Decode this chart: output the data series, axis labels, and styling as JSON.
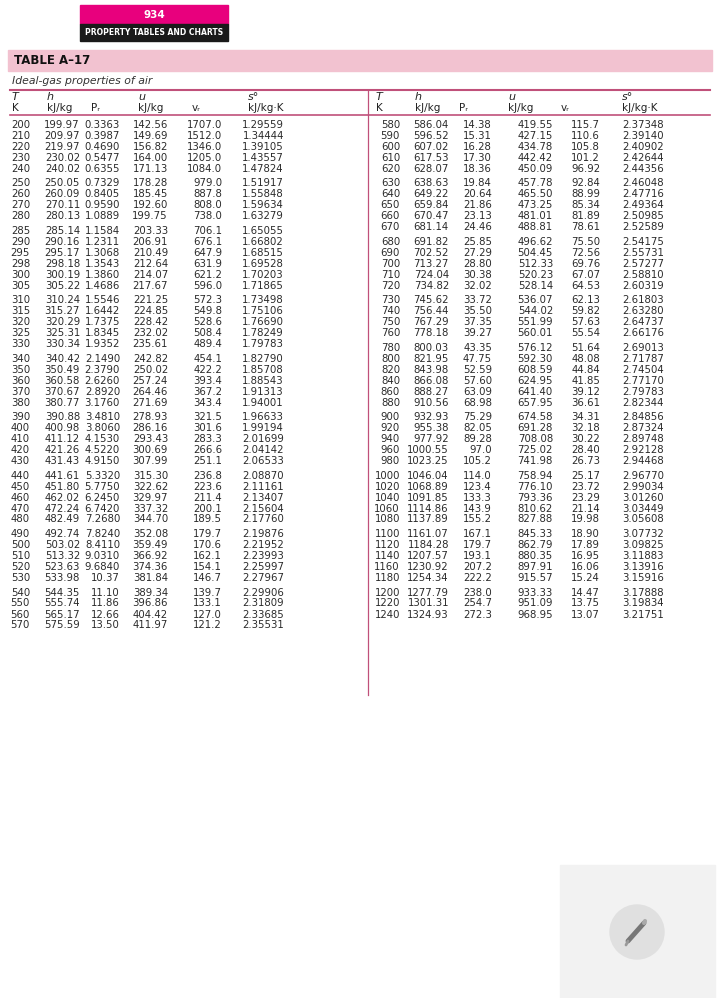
{
  "page_number": "934",
  "page_header": "PROPERTY TABLES AND CHARTS",
  "table_title": "TABLE A–17",
  "table_subtitle": "Ideal-gas properties of air",
  "left_data": [
    [
      200,
      199.97,
      0.3363,
      142.56,
      1707.0,
      1.29559
    ],
    [
      210,
      209.97,
      0.3987,
      149.69,
      1512.0,
      1.34444
    ],
    [
      220,
      219.97,
      0.469,
      156.82,
      1346.0,
      1.39105
    ],
    [
      230,
      230.02,
      0.5477,
      164.0,
      1205.0,
      1.43557
    ],
    [
      240,
      240.02,
      0.6355,
      171.13,
      1084.0,
      1.47824
    ],
    [
      250,
      250.05,
      0.7329,
      178.28,
      979.0,
      1.51917
    ],
    [
      260,
      260.09,
      0.8405,
      185.45,
      887.8,
      1.55848
    ],
    [
      270,
      270.11,
      0.959,
      192.6,
      808.0,
      1.59634
    ],
    [
      280,
      280.13,
      1.0889,
      199.75,
      738.0,
      1.63279
    ],
    [
      285,
      285.14,
      1.1584,
      203.33,
      706.1,
      1.65055
    ],
    [
      290,
      290.16,
      1.2311,
      206.91,
      676.1,
      1.66802
    ],
    [
      295,
      295.17,
      1.3068,
      210.49,
      647.9,
      1.68515
    ],
    [
      298,
      298.18,
      1.3543,
      212.64,
      631.9,
      1.69528
    ],
    [
      300,
      300.19,
      1.386,
      214.07,
      621.2,
      1.70203
    ],
    [
      305,
      305.22,
      1.4686,
      217.67,
      596.0,
      1.71865
    ],
    [
      310,
      310.24,
      1.5546,
      221.25,
      572.3,
      1.73498
    ],
    [
      315,
      315.27,
      1.6442,
      224.85,
      549.8,
      1.75106
    ],
    [
      320,
      320.29,
      1.7375,
      228.42,
      528.6,
      1.7669
    ],
    [
      325,
      325.31,
      1.8345,
      232.02,
      508.4,
      1.78249
    ],
    [
      330,
      330.34,
      1.9352,
      235.61,
      489.4,
      1.79783
    ],
    [
      340,
      340.42,
      2.149,
      242.82,
      454.1,
      1.8279
    ],
    [
      350,
      350.49,
      2.379,
      250.02,
      422.2,
      1.85708
    ],
    [
      360,
      360.58,
      2.626,
      257.24,
      393.4,
      1.88543
    ],
    [
      370,
      370.67,
      2.892,
      264.46,
      367.2,
      1.91313
    ],
    [
      380,
      380.77,
      3.176,
      271.69,
      343.4,
      1.94001
    ],
    [
      390,
      390.88,
      3.481,
      278.93,
      321.5,
      1.96633
    ],
    [
      400,
      400.98,
      3.806,
      286.16,
      301.6,
      1.99194
    ],
    [
      410,
      411.12,
      4.153,
      293.43,
      283.3,
      2.01699
    ],
    [
      420,
      421.26,
      4.522,
      300.69,
      266.6,
      2.04142
    ],
    [
      430,
      431.43,
      4.915,
      307.99,
      251.1,
      2.06533
    ],
    [
      440,
      441.61,
      5.332,
      315.3,
      236.8,
      2.0887
    ],
    [
      450,
      451.8,
      5.775,
      322.62,
      223.6,
      2.11161
    ],
    [
      460,
      462.02,
      6.245,
      329.97,
      211.4,
      2.13407
    ],
    [
      470,
      472.24,
      6.742,
      337.32,
      200.1,
      2.15604
    ],
    [
      480,
      482.49,
      7.268,
      344.7,
      189.5,
      2.1776
    ],
    [
      490,
      492.74,
      7.824,
      352.08,
      179.7,
      2.19876
    ],
    [
      500,
      503.02,
      8.411,
      359.49,
      170.6,
      2.21952
    ],
    [
      510,
      513.32,
      9.031,
      366.92,
      162.1,
      2.23993
    ],
    [
      520,
      523.63,
      9.684,
      374.36,
      154.1,
      2.25997
    ],
    [
      530,
      533.98,
      10.37,
      381.84,
      146.7,
      2.27967
    ],
    [
      540,
      544.35,
      11.1,
      389.34,
      139.7,
      2.29906
    ],
    [
      550,
      555.74,
      11.86,
      396.86,
      133.1,
      2.31809
    ],
    [
      560,
      565.17,
      12.66,
      404.42,
      127.0,
      2.33685
    ],
    [
      570,
      575.59,
      13.5,
      411.97,
      121.2,
      2.35531
    ]
  ],
  "right_data": [
    [
      580,
      586.04,
      14.38,
      419.55,
      115.7,
      2.37348
    ],
    [
      590,
      596.52,
      15.31,
      427.15,
      110.6,
      2.3914
    ],
    [
      600,
      607.02,
      16.28,
      434.78,
      105.8,
      2.40902
    ],
    [
      610,
      617.53,
      17.3,
      442.42,
      101.2,
      2.42644
    ],
    [
      620,
      628.07,
      18.36,
      450.09,
      96.92,
      2.44356
    ],
    [
      630,
      638.63,
      19.84,
      457.78,
      92.84,
      2.46048
    ],
    [
      640,
      649.22,
      20.64,
      465.5,
      88.99,
      2.47716
    ],
    [
      650,
      659.84,
      21.86,
      473.25,
      85.34,
      2.49364
    ],
    [
      660,
      670.47,
      23.13,
      481.01,
      81.89,
      2.50985
    ],
    [
      670,
      681.14,
      24.46,
      488.81,
      78.61,
      2.52589
    ],
    [
      680,
      691.82,
      25.85,
      496.62,
      75.5,
      2.54175
    ],
    [
      690,
      702.52,
      27.29,
      504.45,
      72.56,
      2.55731
    ],
    [
      700,
      713.27,
      28.8,
      512.33,
      69.76,
      2.57277
    ],
    [
      710,
      724.04,
      30.38,
      520.23,
      67.07,
      2.5881
    ],
    [
      720,
      734.82,
      32.02,
      528.14,
      64.53,
      2.60319
    ],
    [
      730,
      745.62,
      33.72,
      536.07,
      62.13,
      2.61803
    ],
    [
      740,
      756.44,
      35.5,
      544.02,
      59.82,
      2.6328
    ],
    [
      750,
      767.29,
      37.35,
      551.99,
      57.63,
      2.64737
    ],
    [
      760,
      778.18,
      39.27,
      560.01,
      55.54,
      2.66176
    ],
    [
      780,
      800.03,
      43.35,
      576.12,
      51.64,
      2.69013
    ],
    [
      800,
      821.95,
      47.75,
      592.3,
      48.08,
      2.71787
    ],
    [
      820,
      843.98,
      52.59,
      608.59,
      44.84,
      2.74504
    ],
    [
      840,
      866.08,
      57.6,
      624.95,
      41.85,
      2.7717
    ],
    [
      860,
      888.27,
      63.09,
      641.4,
      39.12,
      2.79783
    ],
    [
      880,
      910.56,
      68.98,
      657.95,
      36.61,
      2.82344
    ],
    [
      900,
      932.93,
      75.29,
      674.58,
      34.31,
      2.84856
    ],
    [
      920,
      955.38,
      82.05,
      691.28,
      32.18,
      2.87324
    ],
    [
      940,
      977.92,
      89.28,
      708.08,
      30.22,
      2.89748
    ],
    [
      960,
      1000.55,
      97.0,
      725.02,
      28.4,
      2.92128
    ],
    [
      980,
      1023.25,
      105.2,
      741.98,
      26.73,
      2.94468
    ],
    [
      1000,
      1046.04,
      114.0,
      758.94,
      25.17,
      2.9677
    ],
    [
      1020,
      1068.89,
      123.4,
      776.1,
      23.72,
      2.99034
    ],
    [
      1040,
      1091.85,
      133.3,
      793.36,
      23.29,
      3.0126
    ],
    [
      1060,
      1114.86,
      143.9,
      810.62,
      21.14,
      3.03449
    ],
    [
      1080,
      1137.89,
      155.2,
      827.88,
      19.98,
      3.05608
    ],
    [
      1100,
      1161.07,
      167.1,
      845.33,
      18.896,
      3.07732
    ],
    [
      1120,
      1184.28,
      179.7,
      862.79,
      17.886,
      3.09825
    ],
    [
      1140,
      1207.57,
      193.1,
      880.35,
      16.946,
      3.11883
    ],
    [
      1160,
      1230.92,
      207.2,
      897.91,
      16.064,
      3.13916
    ],
    [
      1180,
      1254.34,
      222.2,
      915.57,
      15.241,
      3.15916
    ],
    [
      1200,
      1277.79,
      238.0,
      933.33,
      14.47,
      3.17888
    ],
    [
      1220,
      1301.31,
      254.7,
      951.09,
      13.747,
      3.19834
    ],
    [
      1240,
      1324.93,
      272.3,
      968.95,
      13.069,
      3.21751
    ]
  ],
  "group_breaks_left": [
    4,
    8,
    14,
    19,
    24,
    29,
    34,
    39
  ],
  "group_breaks_right": [
    4,
    9,
    14,
    18,
    24,
    29,
    34,
    39
  ],
  "header_bg": "#E8007D",
  "subheader_bg": "#1a1a1a",
  "table_title_bg": "#F2C2D0",
  "body_text_color": "#2a2a2a",
  "line_color": "#C0507A",
  "page_bg": "#ffffff"
}
